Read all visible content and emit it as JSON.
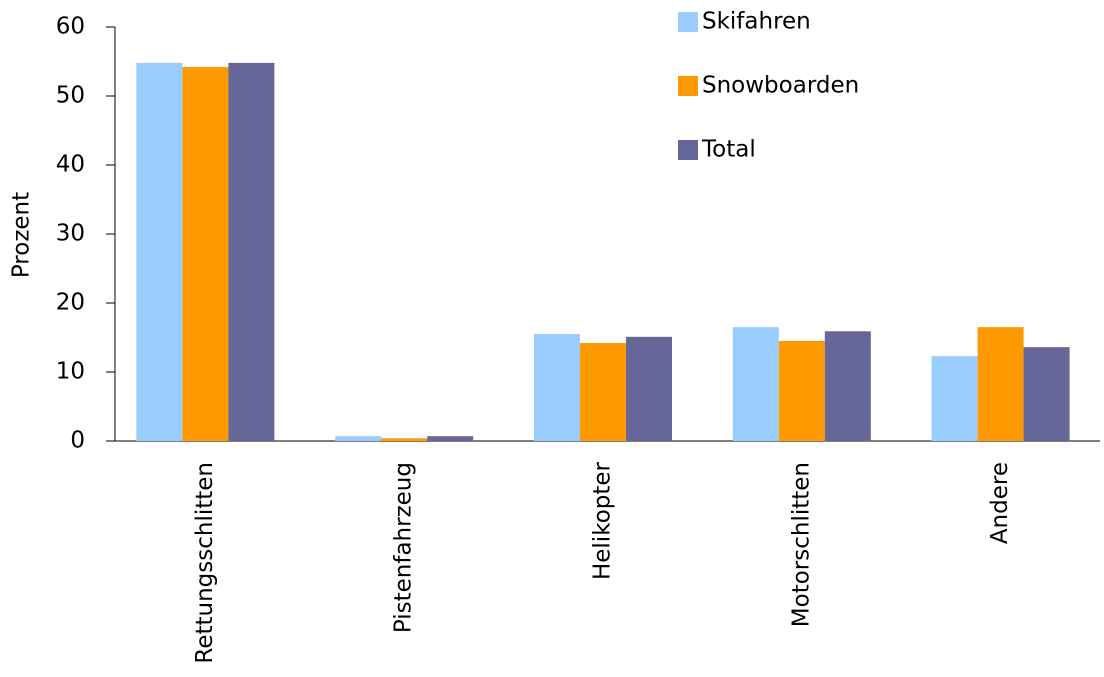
{
  "chart_data": {
    "type": "bar",
    "y_label": "Prozent",
    "categories": [
      "Rettungsschlitten",
      "Pistenfahrzeug",
      "Helikopter",
      "Motorschlitten",
      "Andere"
    ],
    "series": [
      {
        "name": "Skifahren",
        "color": "#99ccff",
        "values": [
          54.8,
          0.7,
          15.5,
          16.5,
          12.3
        ]
      },
      {
        "name": "Snowboarden",
        "color": "#ff9900",
        "values": [
          54.2,
          0.4,
          14.2,
          14.5,
          16.5
        ]
      },
      {
        "name": "Total",
        "color": "#666699",
        "values": [
          54.8,
          0.7,
          15.1,
          15.9,
          13.6
        ]
      }
    ],
    "ylim": [
      0,
      60
    ],
    "yticks": [
      0,
      10,
      20,
      30,
      40,
      50,
      60
    ]
  }
}
